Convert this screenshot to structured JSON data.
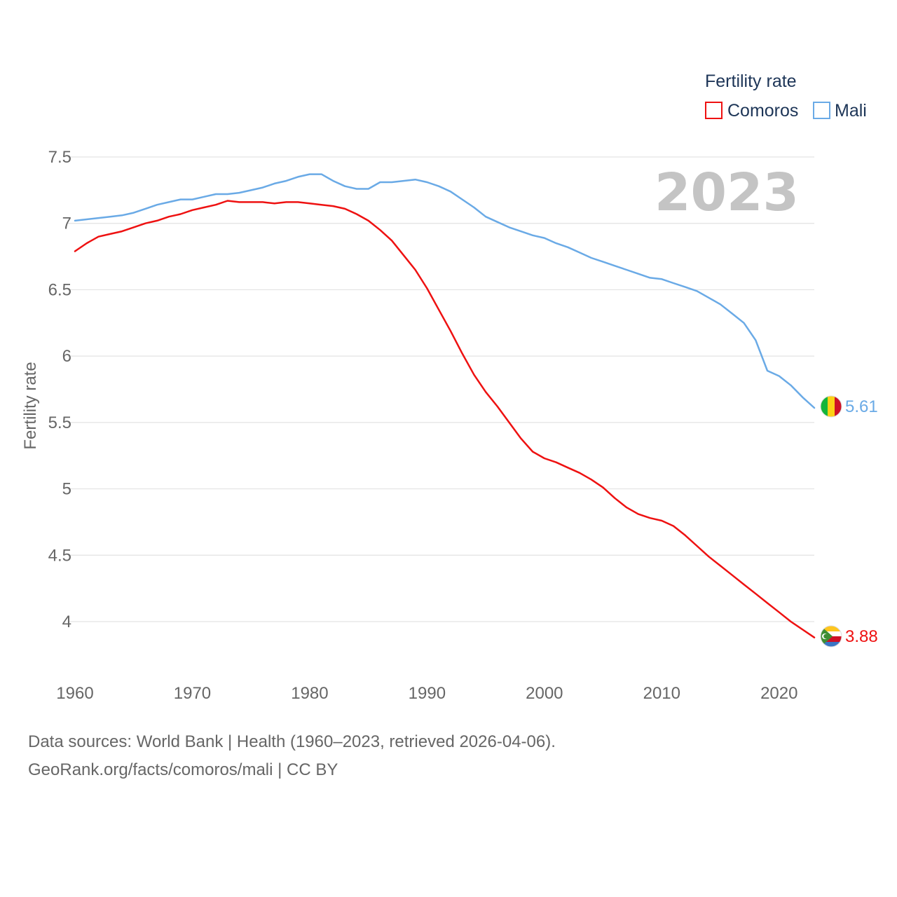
{
  "chart_data": {
    "type": "line",
    "title": "",
    "legend_title": "Fertility rate",
    "legend_position": "top-right",
    "highlight_year": "2023",
    "xlabel": "",
    "ylabel": "Fertility rate",
    "xlim": [
      1960,
      2023
    ],
    "ylim": [
      3.6,
      7.55
    ],
    "x_ticks": [
      1960,
      1970,
      1980,
      1990,
      2000,
      2010,
      2020
    ],
    "y_ticks": [
      4,
      4.5,
      5,
      5.5,
      6,
      6.5,
      7,
      7.5
    ],
    "y_tick_labels": [
      "4",
      "4.5",
      "5",
      "5.5",
      "6",
      "6.5",
      "7",
      "7.5"
    ],
    "grid": true,
    "x": [
      1960,
      1961,
      1962,
      1963,
      1964,
      1965,
      1966,
      1967,
      1968,
      1969,
      1970,
      1971,
      1972,
      1973,
      1974,
      1975,
      1976,
      1977,
      1978,
      1979,
      1980,
      1981,
      1982,
      1983,
      1984,
      1985,
      1986,
      1987,
      1988,
      1989,
      1990,
      1991,
      1992,
      1993,
      1994,
      1995,
      1996,
      1997,
      1998,
      1999,
      2000,
      2001,
      2002,
      2003,
      2004,
      2005,
      2006,
      2007,
      2008,
      2009,
      2010,
      2011,
      2012,
      2013,
      2014,
      2015,
      2016,
      2017,
      2018,
      2019,
      2020,
      2021,
      2022,
      2023
    ],
    "series": [
      {
        "name": "Comoros",
        "color": "#ee1111",
        "end_label": "3.88",
        "flag": "comoros-flag",
        "values": [
          6.79,
          6.85,
          6.9,
          6.92,
          6.94,
          6.97,
          7.0,
          7.02,
          7.05,
          7.07,
          7.1,
          7.12,
          7.14,
          7.17,
          7.16,
          7.16,
          7.16,
          7.15,
          7.16,
          7.16,
          7.15,
          7.14,
          7.13,
          7.11,
          7.07,
          7.02,
          6.95,
          6.87,
          6.76,
          6.65,
          6.51,
          6.35,
          6.19,
          6.02,
          5.86,
          5.73,
          5.62,
          5.5,
          5.38,
          5.28,
          5.23,
          5.2,
          5.16,
          5.12,
          5.07,
          5.01,
          4.93,
          4.86,
          4.81,
          4.78,
          4.76,
          4.72,
          4.65,
          4.57,
          4.49,
          4.42,
          4.35,
          4.28,
          4.21,
          4.14,
          4.07,
          4.0,
          3.94,
          3.88
        ]
      },
      {
        "name": "Mali",
        "color": "#6aaae6",
        "end_label": "5.61",
        "flag": "mali-flag",
        "values": [
          7.02,
          7.03,
          7.04,
          7.05,
          7.06,
          7.08,
          7.11,
          7.14,
          7.16,
          7.18,
          7.18,
          7.2,
          7.22,
          7.22,
          7.23,
          7.25,
          7.27,
          7.3,
          7.32,
          7.35,
          7.37,
          7.37,
          7.32,
          7.28,
          7.26,
          7.26,
          7.31,
          7.31,
          7.32,
          7.33,
          7.31,
          7.28,
          7.24,
          7.18,
          7.12,
          7.05,
          7.01,
          6.97,
          6.94,
          6.91,
          6.89,
          6.85,
          6.82,
          6.78,
          6.74,
          6.71,
          6.68,
          6.65,
          6.62,
          6.59,
          6.58,
          6.55,
          6.52,
          6.49,
          6.44,
          6.39,
          6.32,
          6.25,
          6.12,
          5.89,
          5.85,
          5.78,
          5.69,
          5.61
        ]
      }
    ]
  },
  "footer": {
    "line1": "Data sources: World Bank | Health (1960–2023, retrieved 2026-04-06).",
    "line2": "GeoRank.org/facts/comoros/mali | CC BY"
  }
}
